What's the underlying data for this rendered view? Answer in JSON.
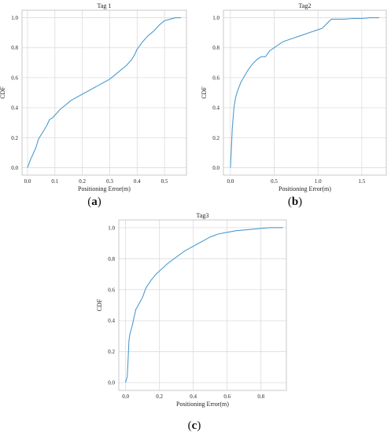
{
  "chart_data": [
    {
      "type": "line",
      "title": "Tag 1",
      "xlabel": "Positioning Error(m)",
      "ylabel": "CDF",
      "caption_prefix": "(",
      "caption_letter": "a",
      "caption_suffix": ")",
      "xlim": [
        -0.02,
        0.58
      ],
      "ylim": [
        -0.05,
        1.05
      ],
      "xticks": [
        "0.0",
        "0.1",
        "0.2",
        "0.3",
        "0.4",
        "0.5"
      ],
      "yticks": [
        "0.0",
        "0.2",
        "0.4",
        "0.6",
        "0.8",
        "1.0"
      ],
      "grid": true,
      "series": [
        {
          "color": "#4e9bd0",
          "x": [
            0.0,
            0.01,
            0.02,
            0.03,
            0.04,
            0.05,
            0.06,
            0.07,
            0.08,
            0.09,
            0.1,
            0.12,
            0.14,
            0.16,
            0.18,
            0.2,
            0.22,
            0.24,
            0.26,
            0.28,
            0.3,
            0.32,
            0.34,
            0.36,
            0.38,
            0.39,
            0.4,
            0.42,
            0.44,
            0.46,
            0.48,
            0.5,
            0.52,
            0.54,
            0.56
          ],
          "y": [
            0.0,
            0.05,
            0.09,
            0.13,
            0.19,
            0.22,
            0.25,
            0.28,
            0.32,
            0.33,
            0.35,
            0.39,
            0.42,
            0.45,
            0.47,
            0.49,
            0.51,
            0.53,
            0.55,
            0.57,
            0.59,
            0.62,
            0.65,
            0.68,
            0.72,
            0.75,
            0.79,
            0.84,
            0.88,
            0.91,
            0.95,
            0.98,
            0.99,
            1.0,
            1.0
          ]
        }
      ]
    },
    {
      "type": "line",
      "title": "Tag2",
      "xlabel": "Positioning Error(m)",
      "ylabel": "CDF",
      "caption_prefix": "(",
      "caption_letter": "b",
      "caption_suffix": ")",
      "xlim": [
        -0.08,
        1.78
      ],
      "ylim": [
        -0.05,
        1.05
      ],
      "xticks": [
        "0.0",
        "0.5",
        "1.0",
        "1.5"
      ],
      "yticks": [
        "0.0",
        "0.2",
        "0.4",
        "0.6",
        "0.8",
        "1.0"
      ],
      "grid": true,
      "series": [
        {
          "color": "#4e9bd0",
          "x": [
            0.0,
            0.01,
            0.02,
            0.04,
            0.06,
            0.08,
            0.1,
            0.12,
            0.15,
            0.2,
            0.25,
            0.3,
            0.35,
            0.4,
            0.45,
            0.5,
            0.55,
            0.6,
            0.7,
            0.8,
            0.9,
            1.0,
            1.05,
            1.1,
            1.15,
            1.2,
            1.3,
            1.4,
            1.5,
            1.6,
            1.7
          ],
          "y": [
            0.0,
            0.12,
            0.25,
            0.4,
            0.47,
            0.51,
            0.54,
            0.57,
            0.6,
            0.65,
            0.69,
            0.72,
            0.74,
            0.74,
            0.78,
            0.8,
            0.82,
            0.84,
            0.86,
            0.88,
            0.9,
            0.92,
            0.93,
            0.96,
            0.99,
            0.99,
            0.99,
            0.995,
            0.995,
            1.0,
            1.0
          ]
        }
      ]
    },
    {
      "type": "line",
      "title": "Tag3",
      "xlabel": "Positioning Error(m)",
      "ylabel": "CDF",
      "caption_prefix": "(",
      "caption_letter": "c",
      "caption_suffix": ")",
      "xlim": [
        -0.04,
        0.95
      ],
      "ylim": [
        -0.05,
        1.05
      ],
      "xticks": [
        "0.0",
        "0.2",
        "0.4",
        "0.6",
        "0.8"
      ],
      "yticks": [
        "0.0",
        "0.2",
        "0.4",
        "0.6",
        "0.8",
        "1.0"
      ],
      "grid": true,
      "series": [
        {
          "color": "#4e9bd0",
          "x": [
            0.0,
            0.01,
            0.015,
            0.02,
            0.025,
            0.03,
            0.04,
            0.05,
            0.06,
            0.08,
            0.1,
            0.12,
            0.15,
            0.18,
            0.2,
            0.25,
            0.3,
            0.35,
            0.4,
            0.45,
            0.5,
            0.55,
            0.6,
            0.65,
            0.7,
            0.75,
            0.8,
            0.85,
            0.9,
            0.93
          ],
          "y": [
            0.0,
            0.04,
            0.15,
            0.27,
            0.31,
            0.33,
            0.37,
            0.42,
            0.47,
            0.51,
            0.55,
            0.61,
            0.66,
            0.7,
            0.72,
            0.77,
            0.81,
            0.85,
            0.88,
            0.91,
            0.94,
            0.96,
            0.97,
            0.98,
            0.985,
            0.99,
            0.995,
            1.0,
            1.0,
            1.0
          ]
        }
      ]
    }
  ]
}
